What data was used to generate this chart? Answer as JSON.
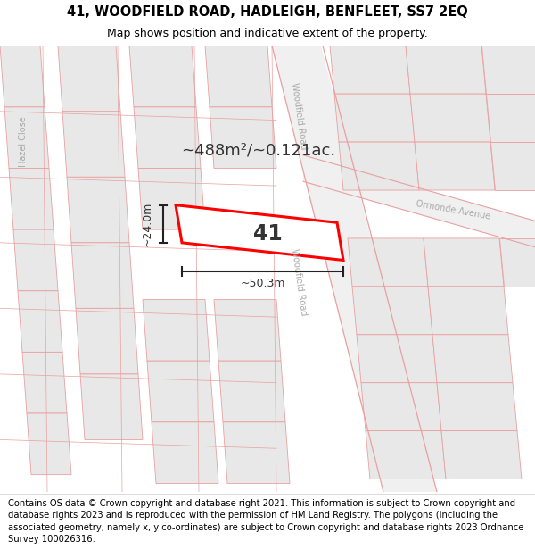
{
  "title_line1": "41, WOODFIELD ROAD, HADLEIGH, BENFLEET, SS7 2EQ",
  "title_line2": "Map shows position and indicative extent of the property.",
  "footer_text": "Contains OS data © Crown copyright and database right 2021. This information is subject to Crown copyright and database rights 2023 and is reproduced with the permission of HM Land Registry. The polygons (including the associated geometry, namely x, y co-ordinates) are subject to Crown copyright and database rights 2023 Ordnance Survey 100026316.",
  "area_label": "~488m²/~0.121ac.",
  "width_label": "~50.3m",
  "height_label": "~24.0m",
  "plot_number": "41",
  "bg_color": "#ffffff",
  "map_bg": "#f7f7f7",
  "block_fill": "#e8e8e8",
  "block_edge": "#e8a0a0",
  "road_bg": "#f0f0f0",
  "highlight_color": "#ff0000",
  "highlight_fill": "#ffffff",
  "dim_line_color": "#222222",
  "label_color": "#aaaaaa",
  "title_fontsize": 10.5,
  "subtitle_fontsize": 9,
  "footer_fontsize": 7.2,
  "road_label_fontsize": 7,
  "area_fontsize": 13,
  "plot_num_fontsize": 17
}
